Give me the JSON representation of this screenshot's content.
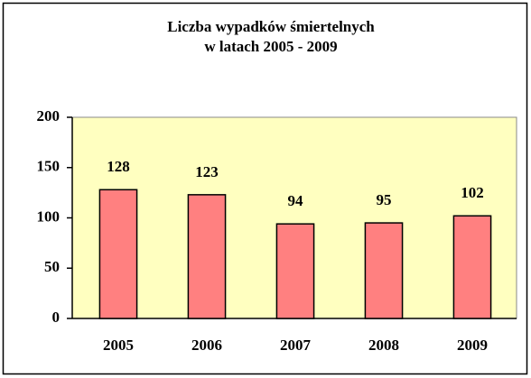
{
  "chart_data": {
    "type": "bar",
    "title": [
      "Liczba wypadków śmiertelnych",
      "w latach 2005 - 2009"
    ],
    "categories": [
      "2005",
      "2006",
      "2007",
      "2008",
      "2009"
    ],
    "values": [
      128,
      123,
      94,
      95,
      102
    ],
    "color": "#ff8080",
    "ylim": [
      0,
      200
    ],
    "yticks": [
      0,
      50,
      100,
      150,
      200
    ],
    "grid": false
  }
}
